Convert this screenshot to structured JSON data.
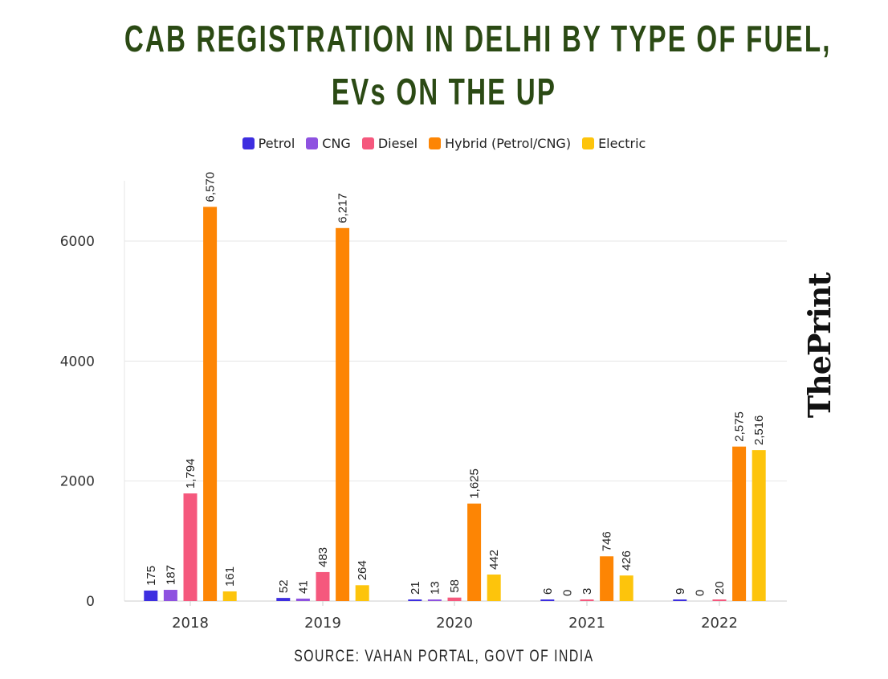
{
  "title_line1": "CAB REGISTRATION IN DELHI BY TYPE OF FUEL,",
  "title_line2": "EVs ON THE UP",
  "source": "SOURCE: VAHAN PORTAL, GOVT OF INDIA",
  "logo": "ThePrint",
  "chart_data": {
    "type": "bar",
    "title": "CAB REGISTRATION IN DELHI BY TYPE OF FUEL, EVs ON THE UP",
    "categories": [
      "2018",
      "2019",
      "2020",
      "2021",
      "2022"
    ],
    "series": [
      {
        "name": "Petrol",
        "color": "#3d2ee0",
        "values": [
          175,
          52,
          21,
          6,
          9
        ],
        "labels": [
          "175",
          "52",
          "21",
          "6",
          "9"
        ]
      },
      {
        "name": "CNG",
        "color": "#8e52e0",
        "values": [
          187,
          41,
          13,
          0,
          0
        ],
        "labels": [
          "187",
          "41",
          "13",
          "0",
          "0"
        ]
      },
      {
        "name": "Diesel",
        "color": "#f5587d",
        "values": [
          1794,
          483,
          58,
          3,
          20
        ],
        "labels": [
          "1,794",
          "483",
          "58",
          "3",
          "20"
        ]
      },
      {
        "name": "Hybrid (Petrol/CNG)",
        "color": "#fd8504",
        "values": [
          6570,
          6217,
          1625,
          746,
          2575
        ],
        "labels": [
          "6,570",
          "6,217",
          "1,625",
          "746",
          "2,575"
        ]
      },
      {
        "name": "Electric",
        "color": "#fdc40c",
        "values": [
          161,
          264,
          442,
          426,
          2516
        ],
        "labels": [
          "161",
          "264",
          "442",
          "426",
          "2,516"
        ]
      }
    ],
    "y_ticks": [
      "0",
      "2000",
      "4000",
      "6000"
    ],
    "ylim": [
      0,
      7000
    ],
    "grid": true,
    "legend_position": "top"
  }
}
